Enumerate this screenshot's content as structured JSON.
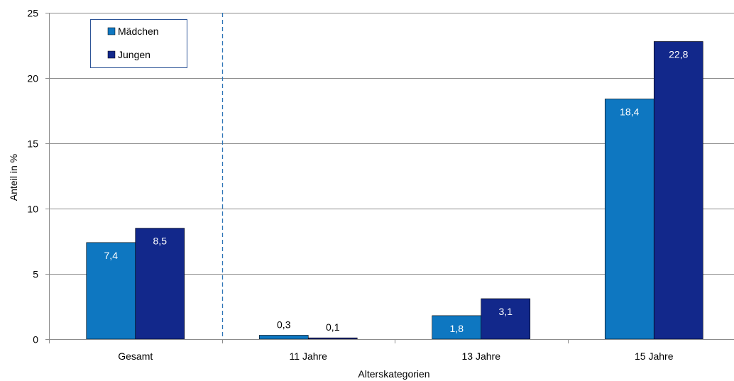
{
  "chart_data": {
    "type": "bar",
    "categories": [
      "Gesamt",
      "11 Jahre",
      "13 Jahre",
      "15 Jahre"
    ],
    "series": [
      {
        "name": "Mädchen",
        "values": [
          7.4,
          0.3,
          1.8,
          18.4
        ],
        "labels": [
          "7,4",
          "0,3",
          "1,8",
          "18,4"
        ],
        "color": "#0E77C1"
      },
      {
        "name": "Jungen",
        "values": [
          8.5,
          0.1,
          3.1,
          22.8
        ],
        "labels": [
          "8,5",
          "0,1",
          "3,1",
          "22,8"
        ],
        "color": "#12288B"
      }
    ],
    "xlabel": "Alterskategorien",
    "ylabel": "Anteil in %",
    "ylim": [
      0,
      25
    ],
    "yticks": [
      "0",
      "5",
      "10",
      "15",
      "20",
      "25"
    ],
    "grid": true,
    "legend_position": "top-left",
    "separator_after_category": "Gesamt"
  }
}
